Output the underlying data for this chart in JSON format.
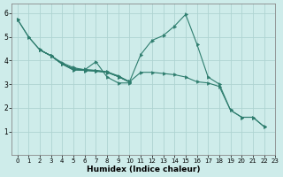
{
  "xlabel": "Humidex (Indice chaleur)",
  "xlim": [
    -0.5,
    23
  ],
  "ylim": [
    0,
    6.4
  ],
  "xticks": [
    0,
    1,
    2,
    3,
    4,
    5,
    6,
    7,
    8,
    9,
    10,
    11,
    12,
    13,
    14,
    15,
    16,
    17,
    18,
    19,
    20,
    21,
    22,
    23
  ],
  "yticks": [
    1,
    2,
    3,
    4,
    5,
    6
  ],
  "bg_color": "#ceecea",
  "grid_color": "#aed4d1",
  "line_color": "#2e7d6e",
  "lines": [
    {
      "x": [
        0,
        1,
        2,
        3,
        4,
        5,
        6,
        7,
        8,
        9,
        10
      ],
      "y": [
        5.75,
        5.0,
        4.45,
        4.2,
        3.85,
        3.6,
        3.6,
        3.95,
        3.3,
        3.05,
        3.05
      ]
    },
    {
      "x": [
        2,
        3,
        4,
        5,
        6,
        7,
        8,
        9,
        10
      ],
      "y": [
        4.45,
        4.2,
        3.9,
        3.7,
        3.6,
        3.58,
        3.52,
        3.35,
        3.1
      ]
    },
    {
      "x": [
        2,
        3,
        4,
        5,
        6,
        7,
        8,
        9,
        10
      ],
      "y": [
        4.45,
        4.2,
        3.85,
        3.65,
        3.58,
        3.55,
        3.5,
        3.32,
        3.08
      ]
    },
    {
      "x": [
        2,
        3,
        4,
        5,
        6,
        7,
        8,
        9,
        10,
        11,
        12,
        13,
        14,
        15,
        16,
        17,
        18,
        19,
        20,
        21,
        22
      ],
      "y": [
        4.45,
        4.2,
        3.85,
        3.65,
        3.62,
        3.58,
        3.52,
        3.32,
        3.1,
        4.25,
        4.85,
        5.05,
        5.45,
        5.95,
        4.7,
        3.3,
        3.0,
        1.9,
        1.6,
        1.6,
        1.2
      ]
    },
    {
      "x": [
        0,
        1,
        2,
        3,
        4,
        5,
        6,
        7,
        8,
        9,
        10,
        11,
        12,
        13,
        14,
        15,
        16,
        17,
        18,
        19,
        20,
        21,
        22
      ],
      "y": [
        5.75,
        5.0,
        4.45,
        4.2,
        3.85,
        3.6,
        3.58,
        3.55,
        3.5,
        3.32,
        3.1,
        3.5,
        3.5,
        3.45,
        3.4,
        3.3,
        3.1,
        3.05,
        2.9,
        1.9,
        1.6,
        1.6,
        1.2
      ]
    }
  ]
}
